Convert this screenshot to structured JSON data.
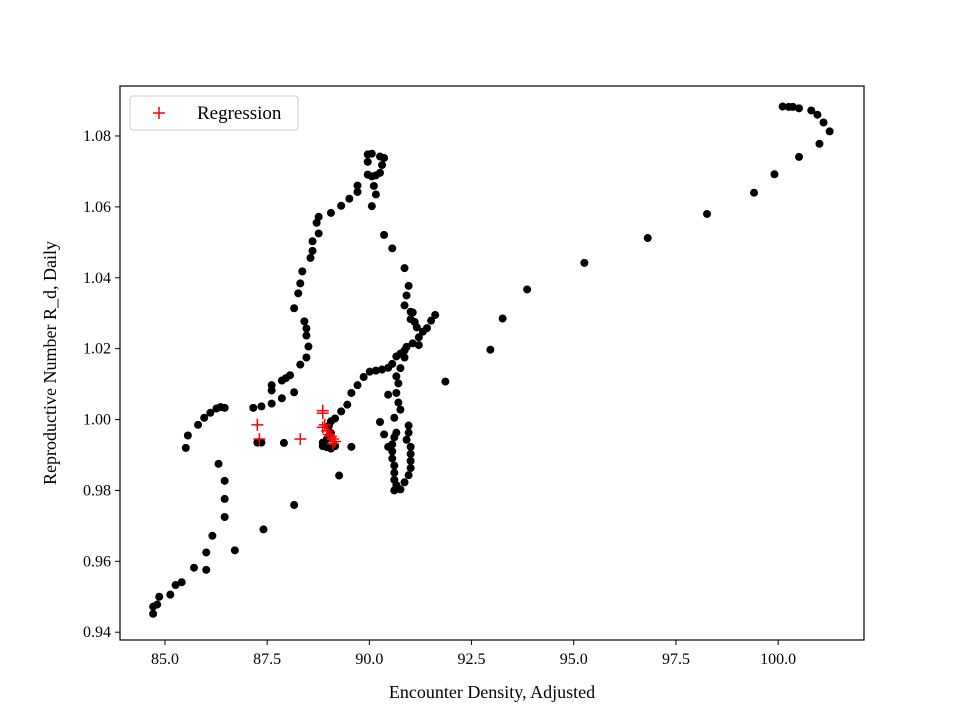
{
  "chart_data": {
    "type": "scatter",
    "title": "",
    "xlabel": "Encounter Density, Adjusted",
    "ylabel": "Reproductive Number R_d, Daily",
    "xlim": [
      83.9,
      102.1
    ],
    "ylim": [
      0.9378,
      1.0941
    ],
    "xticks": [
      85.0,
      87.5,
      90.0,
      92.5,
      95.0,
      97.5,
      100.0
    ],
    "xtick_labels": [
      "85.0",
      "87.5",
      "90.0",
      "92.5",
      "95.0",
      "97.5",
      "100.0"
    ],
    "yticks": [
      0.94,
      0.96,
      0.98,
      1.0,
      1.02,
      1.04,
      1.06,
      1.08
    ],
    "ytick_labels": [
      "0.94",
      "0.96",
      "0.98",
      "1.00",
      "1.02",
      "1.04",
      "1.06",
      "1.08"
    ],
    "grid": false,
    "legend_position": "upper-left",
    "series": [
      {
        "marker": "dot",
        "color": "#000000",
        "points": [
          [
            84.71,
            0.9452
          ],
          [
            84.71,
            0.9472
          ],
          [
            84.81,
            0.9478
          ],
          [
            84.86,
            0.95
          ],
          [
            85.13,
            0.9506
          ],
          [
            85.26,
            0.9533
          ],
          [
            85.41,
            0.9541
          ],
          [
            85.71,
            0.9582
          ],
          [
            86.01,
            0.9576
          ],
          [
            86.01,
            0.9625
          ],
          [
            86.16,
            0.9672
          ],
          [
            86.46,
            0.9725
          ],
          [
            86.46,
            0.9776
          ],
          [
            86.46,
            0.9827
          ],
          [
            86.31,
            0.9875
          ],
          [
            85.51,
            0.992
          ],
          [
            85.56,
            0.9955
          ],
          [
            85.81,
            0.9985
          ],
          [
            85.96,
            1.0005
          ],
          [
            86.11,
            1.0019
          ],
          [
            86.26,
            1.0031
          ],
          [
            86.36,
            1.0035
          ],
          [
            86.46,
            1.0033
          ],
          [
            86.71,
            0.9631
          ],
          [
            87.41,
            0.969
          ],
          [
            88.16,
            0.9759
          ],
          [
            87.91,
            0.9934
          ],
          [
            87.36,
            0.9935
          ],
          [
            87.26,
            0.9935
          ],
          [
            87.16,
            1.0033
          ],
          [
            87.36,
            1.0037
          ],
          [
            87.61,
            1.0045
          ],
          [
            87.61,
            1.0082
          ],
          [
            87.61,
            1.0097
          ],
          [
            87.86,
            1.011
          ],
          [
            87.96,
            1.0117
          ],
          [
            88.06,
            1.0125
          ],
          [
            88.16,
            1.0077
          ],
          [
            87.86,
            1.006
          ],
          [
            88.31,
            1.0155
          ],
          [
            88.46,
            1.0175
          ],
          [
            88.51,
            1.0206
          ],
          [
            88.46,
            1.0237
          ],
          [
            88.46,
            1.0257
          ],
          [
            88.41,
            1.0277
          ],
          [
            88.16,
            1.0314
          ],
          [
            88.26,
            1.0356
          ],
          [
            88.31,
            1.0384
          ],
          [
            88.36,
            1.0418
          ],
          [
            88.56,
            1.0456
          ],
          [
            88.61,
            1.0476
          ],
          [
            88.61,
            1.0503
          ],
          [
            88.76,
            1.0525
          ],
          [
            88.71,
            1.0555
          ],
          [
            88.76,
            1.0572
          ],
          [
            89.06,
            1.0583
          ],
          [
            89.31,
            1.0603
          ],
          [
            89.51,
            1.0623
          ],
          [
            89.71,
            1.0642
          ],
          [
            89.71,
            1.066
          ],
          [
            89.96,
            1.0691
          ],
          [
            89.96,
            1.0727
          ],
          [
            89.96,
            1.0748
          ],
          [
            90.06,
            1.075
          ],
          [
            90.26,
            1.0742
          ],
          [
            90.36,
            1.0738
          ],
          [
            90.31,
            1.0718
          ],
          [
            90.26,
            1.0696
          ],
          [
            90.16,
            1.0689
          ],
          [
            90.06,
            1.0686
          ],
          [
            90.11,
            1.0659
          ],
          [
            90.16,
            1.0635
          ],
          [
            90.06,
            1.0602
          ],
          [
            90.36,
            1.0521
          ],
          [
            90.56,
            1.0483
          ],
          [
            90.86,
            1.0427
          ],
          [
            90.96,
            1.0377
          ],
          [
            90.91,
            1.035
          ],
          [
            90.86,
            1.0322
          ],
          [
            91.01,
            1.0304
          ],
          [
            91.01,
            1.0283
          ],
          [
            91.11,
            1.0275
          ],
          [
            91.06,
            1.0302
          ],
          [
            91.16,
            1.026
          ],
          [
            91.21,
            1.0232
          ],
          [
            91.31,
            1.0248
          ],
          [
            91.41,
            1.0258
          ],
          [
            91.51,
            1.0279
          ],
          [
            91.61,
            1.0295
          ],
          [
            91.21,
            1.021
          ],
          [
            91.06,
            1.0215
          ],
          [
            90.91,
            1.0205
          ],
          [
            90.86,
            1.0195
          ],
          [
            90.76,
            1.0186
          ],
          [
            90.66,
            1.0178
          ],
          [
            90.56,
            1.0157
          ],
          [
            90.46,
            1.0146
          ],
          [
            90.31,
            1.0141
          ],
          [
            90.16,
            1.0138
          ],
          [
            90.01,
            1.0135
          ],
          [
            89.86,
            1.012
          ],
          [
            89.71,
            1.0097
          ],
          [
            89.56,
            1.0075
          ],
          [
            89.46,
            1.0042
          ],
          [
            89.31,
            1.0023
          ],
          [
            89.16,
            1.0003
          ],
          [
            89.06,
            0.9995
          ],
          [
            89.01,
            0.9982
          ],
          [
            89.06,
            0.9962
          ],
          [
            88.96,
            0.9945
          ],
          [
            88.86,
            0.9935
          ],
          [
            88.86,
            0.9925
          ],
          [
            88.96,
            0.9922
          ],
          [
            89.06,
            0.9918
          ],
          [
            89.16,
            0.9925
          ],
          [
            89.26,
            0.9842
          ],
          [
            89.56,
            0.9923
          ],
          [
            90.46,
            0.9923
          ],
          [
            90.36,
            0.9958
          ],
          [
            90.26,
            0.9993
          ],
          [
            90.61,
            1.0005
          ],
          [
            90.76,
            1.0028
          ],
          [
            90.71,
            1.0048
          ],
          [
            90.66,
            1.0075
          ],
          [
            90.46,
            1.007
          ],
          [
            90.71,
            1.0102
          ],
          [
            90.66,
            1.0122
          ],
          [
            90.76,
            1.0145
          ],
          [
            90.86,
            1.0175
          ],
          [
            90.96,
            0.9983
          ],
          [
            90.96,
            0.9963
          ],
          [
            90.91,
            0.9943
          ],
          [
            91.01,
            0.9923
          ],
          [
            91.01,
            0.9903
          ],
          [
            91.01,
            0.9883
          ],
          [
            91.01,
            0.9863
          ],
          [
            90.96,
            0.9843
          ],
          [
            90.86,
            0.9823
          ],
          [
            90.76,
            0.9803
          ],
          [
            90.61,
            0.98
          ],
          [
            90.66,
            0.9815
          ],
          [
            90.61,
            0.983
          ],
          [
            90.61,
            0.985
          ],
          [
            90.61,
            0.987
          ],
          [
            90.56,
            0.989
          ],
          [
            90.56,
            0.991
          ],
          [
            90.56,
            0.993
          ],
          [
            90.61,
            0.995
          ],
          [
            90.66,
            0.9963
          ],
          [
            91.86,
            1.0107
          ],
          [
            92.96,
            1.0197
          ],
          [
            93.26,
            1.0285
          ],
          [
            93.86,
            1.0367
          ],
          [
            95.26,
            1.0442
          ],
          [
            96.81,
            1.0512
          ],
          [
            98.26,
            1.058
          ],
          [
            99.41,
            1.064
          ],
          [
            99.91,
            1.0692
          ],
          [
            100.51,
            1.0741
          ],
          [
            101.01,
            1.0778
          ],
          [
            101.26,
            1.0813
          ],
          [
            101.11,
            1.0838
          ],
          [
            100.96,
            1.086
          ],
          [
            100.81,
            1.0872
          ],
          [
            100.51,
            1.0878
          ],
          [
            100.36,
            1.0882
          ],
          [
            100.26,
            1.0882
          ],
          [
            100.11,
            1.0883
          ]
        ]
      },
      {
        "name": "Regression",
        "marker": "plus",
        "color": "#ff0000",
        "points": [
          [
            87.26,
            0.9985
          ],
          [
            87.31,
            0.9945
          ],
          [
            88.31,
            0.9945
          ],
          [
            88.86,
            1.0025
          ],
          [
            88.86,
            1.0018
          ],
          [
            88.91,
            0.9985
          ],
          [
            88.86,
            0.9978
          ],
          [
            88.96,
            0.9968
          ],
          [
            89.01,
            0.9958
          ],
          [
            89.06,
            0.9952
          ],
          [
            89.11,
            0.9945
          ],
          [
            89.16,
            0.9938
          ],
          [
            89.11,
            0.9932
          ]
        ]
      }
    ]
  }
}
